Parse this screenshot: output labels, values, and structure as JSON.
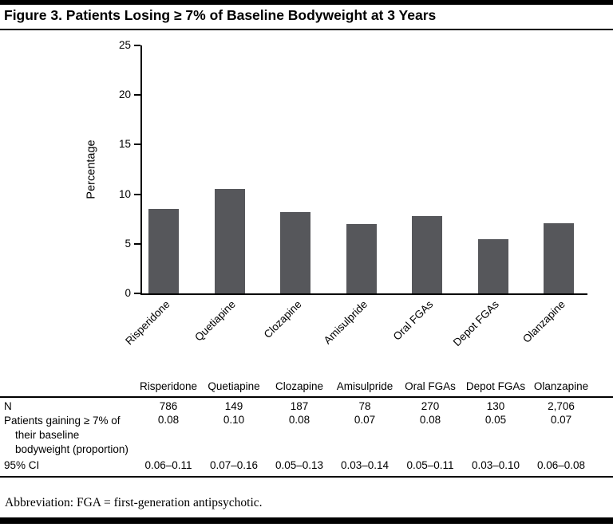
{
  "figure": {
    "title": "Figure 3. Patients Losing ≥ 7% of Baseline Bodyweight at 3 Years"
  },
  "chart_data": {
    "type": "bar",
    "title": "Figure 3. Patients Losing ≥ 7% of Baseline Bodyweight at 3 Years",
    "categories": [
      "Risperidone",
      "Quetiapine",
      "Clozapine",
      "Amisulpride",
      "Oral FGAs",
      "Depot FGAs",
      "Olanzapine"
    ],
    "values": [
      8.5,
      10.5,
      8.2,
      7.0,
      7.8,
      5.5,
      7.1
    ],
    "xlabel": "",
    "ylabel": "Percentage",
    "ylim": [
      0,
      25
    ],
    "yticks": [
      0,
      5,
      10,
      15,
      20,
      25
    ],
    "grid": false,
    "legend": false,
    "bar_color": "#56575b"
  },
  "table": {
    "columns": [
      "Risperidone",
      "Quetiapine",
      "Clozapine",
      "Amisulpride",
      "Oral FGAs",
      "Depot FGAs",
      "Olanzapine"
    ],
    "rows": [
      {
        "label": "N",
        "values": [
          "786",
          "149",
          "187",
          "78",
          "270",
          "130",
          "2,706"
        ]
      },
      {
        "label": "Patients gaining ≥ 7% of their baseline bodyweight (proportion)",
        "values": [
          "0.08",
          "0.10",
          "0.08",
          "0.07",
          "0.08",
          "0.05",
          "0.07"
        ]
      },
      {
        "label": "95% CI",
        "values": [
          "0.06–0.11",
          "0.07–0.16",
          "0.05–0.13",
          "0.03–0.14",
          "0.05–0.11",
          "0.03–0.10",
          "0.06–0.08"
        ]
      }
    ]
  },
  "footer": {
    "abbreviation": "Abbreviation: FGA = first-generation antipsychotic."
  }
}
